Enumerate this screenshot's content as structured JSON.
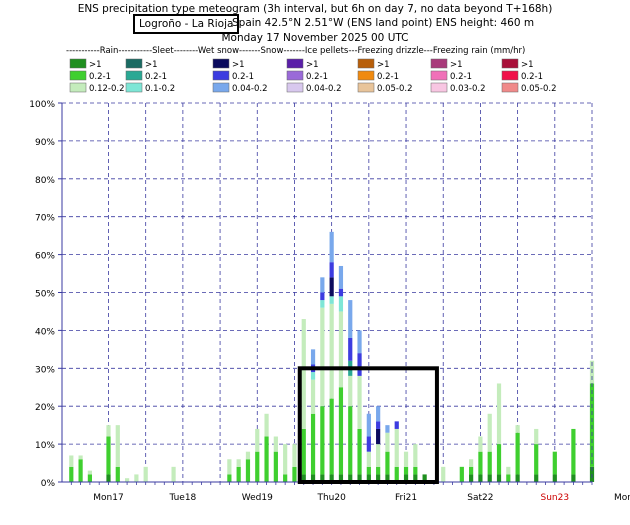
{
  "header": {
    "title": "ENS precipitation type meteogram (3h interval, but 6h on day 7, no data beyond T+168h)",
    "location": "Logroño - La Rioja",
    "location_detail": "Spain 42.5°N 2.51°W (ENS land point) ENS height: 460 m",
    "run_time": "Monday 17 November 2025 00 UTC"
  },
  "legend": {
    "heading": "-----------Rain-----------Sleet--------Wet snow-------Snow-------Ice pellets---Freezing drizzle---Freezing rain (mm/hr)",
    "groups": [
      {
        "name": "Rain",
        "items": [
          {
            "label": ">1",
            "color": "#1f8f1f"
          },
          {
            "label": "0.2-1",
            "color": "#3fcf2f"
          },
          {
            "label": "0.12-0.2",
            "color": "#c4ecbc"
          }
        ]
      },
      {
        "name": "Sleet",
        "items": [
          {
            "label": ">1",
            "color": "#1a6b63"
          },
          {
            "label": "0.2-1",
            "color": "#2aa894"
          },
          {
            "label": "0.1-0.2",
            "color": "#7ee6d6"
          }
        ]
      },
      {
        "name": "Wet snow",
        "items": [
          {
            "label": ">1",
            "color": "#0b0b5e"
          },
          {
            "label": "0.2-1",
            "color": "#3c3ce0"
          },
          {
            "label": "0.04-0.2",
            "color": "#79a8ec"
          }
        ]
      },
      {
        "name": "Snow",
        "items": [
          {
            "label": ">1",
            "color": "#5a1fa8"
          },
          {
            "label": "0.2-1",
            "color": "#9a6ad8"
          },
          {
            "label": "0.04-0.2",
            "color": "#d8c8ee"
          }
        ]
      },
      {
        "name": "Ice pellets",
        "items": [
          {
            "label": ">1",
            "color": "#b85f0a"
          },
          {
            "label": "0.2-1",
            "color": "#f08a10"
          },
          {
            "label": "0.05-0.2",
            "color": "#e8c49a"
          }
        ]
      },
      {
        "name": "Freezing drizzle",
        "items": [
          {
            "label": ">1",
            "color": "#a83a7a"
          },
          {
            "label": "0.2-1",
            "color": "#f070b8"
          },
          {
            "label": "0.03-0.2",
            "color": "#f8c6e2"
          }
        ]
      },
      {
        "name": "Freezing rain",
        "items": [
          {
            "label": ">1",
            "color": "#a8103a"
          },
          {
            "label": "0.2-1",
            "color": "#f0104a"
          },
          {
            "label": "0.05-0.2",
            "color": "#f08a8a"
          }
        ]
      }
    ]
  },
  "chart_data": {
    "type": "bar",
    "stacked": true,
    "x_unit": "hours from Monday 17 November 2025 00 UTC",
    "x": [
      0,
      3,
      6,
      9,
      12,
      15,
      18,
      21,
      24,
      27,
      30,
      33,
      36,
      39,
      42,
      45,
      48,
      51,
      54,
      57,
      60,
      63,
      66,
      69,
      72,
      75,
      78,
      81,
      84,
      87,
      90,
      93,
      96,
      99,
      102,
      105,
      108,
      111,
      114,
      117,
      120,
      123,
      126,
      129,
      132,
      135,
      138,
      141,
      144,
      150,
      156,
      162,
      168
    ],
    "xlim": [
      -3,
      168
    ],
    "ylim": [
      0,
      100
    ],
    "ytick_labels": [
      "0%",
      "10%",
      "20%",
      "30%",
      "40%",
      "50%",
      "60%",
      "70%",
      "80%",
      "90%",
      "100%"
    ],
    "xtick_labels": [
      {
        "label": "Mon17",
        "color": "#000000"
      },
      {
        "label": "Tue18",
        "color": "#000000"
      },
      {
        "label": "Wed19",
        "color": "#000000"
      },
      {
        "label": "Thu20",
        "color": "#000000"
      },
      {
        "label": "Fri21",
        "color": "#000000"
      },
      {
        "label": "Sat22",
        "color": "#000000"
      },
      {
        "label": "Sun23",
        "color": "#cc0000"
      },
      {
        "label": "Mon24",
        "color": "#000000"
      }
    ],
    "series": [
      {
        "name": "Rain >1",
        "color": "#1f8f1f",
        "values": [
          0,
          0,
          0,
          0,
          2,
          0,
          0,
          0,
          0,
          0,
          0,
          0,
          0,
          0,
          0,
          0,
          0,
          0,
          0,
          0,
          0,
          0,
          0,
          0,
          0,
          2,
          2,
          2,
          2,
          2,
          2,
          2,
          2,
          2,
          2,
          0,
          2,
          2,
          2,
          0,
          0,
          0,
          0,
          2,
          2,
          2,
          2,
          0,
          2,
          2,
          2,
          2,
          4
        ]
      },
      {
        "name": "Rain 0.2-1",
        "color": "#3fcf2f",
        "values": [
          4,
          6,
          2,
          0,
          10,
          4,
          0,
          0,
          0,
          0,
          0,
          0,
          0,
          0,
          0,
          0,
          0,
          2,
          4,
          6,
          8,
          12,
          8,
          2,
          4,
          12,
          16,
          18,
          20,
          23,
          18,
          12,
          2,
          2,
          6,
          4,
          2,
          2,
          0,
          0,
          0,
          0,
          4,
          2,
          6,
          6,
          8,
          2,
          11,
          8,
          6,
          12,
          22
        ]
      },
      {
        "name": "Rain 0.12-0.2",
        "color": "#c4ecbc",
        "values": [
          3,
          1,
          1,
          0,
          3,
          11,
          1,
          2,
          4,
          0,
          0,
          4,
          0,
          0,
          0,
          0,
          0,
          4,
          2,
          2,
          6,
          6,
          4,
          8,
          6,
          29,
          9,
          26,
          25,
          20,
          8,
          14,
          4,
          6,
          5,
          10,
          4,
          6,
          0,
          0,
          4,
          0,
          0,
          2,
          4,
          10,
          16,
          2,
          2,
          4,
          0,
          0,
          6
        ]
      },
      {
        "name": "Sleet 0.2-1",
        "color": "#2aa894",
        "values": [
          0,
          0,
          0,
          0,
          0,
          0,
          0,
          0,
          0,
          0,
          0,
          0,
          0,
          0,
          0,
          0,
          0,
          0,
          0,
          0,
          0,
          0,
          0,
          0,
          0,
          0,
          0,
          0,
          0,
          0,
          4,
          0,
          0,
          0,
          0,
          0,
          0,
          0,
          0,
          0,
          0,
          0,
          0,
          0,
          0,
          0,
          0,
          0,
          0,
          0,
          0,
          0,
          0
        ]
      },
      {
        "name": "Sleet 0.1-0.2",
        "color": "#7ee6d6",
        "values": [
          0,
          0,
          0,
          0,
          0,
          0,
          0,
          0,
          0,
          0,
          0,
          0,
          0,
          0,
          0,
          0,
          0,
          0,
          0,
          0,
          0,
          0,
          0,
          0,
          0,
          0,
          2,
          2,
          2,
          4,
          0,
          0,
          0,
          0,
          0,
          0,
          0,
          0,
          0,
          0,
          0,
          0,
          0,
          0,
          0,
          0,
          0,
          0,
          0,
          0,
          0,
          0,
          0
        ]
      },
      {
        "name": "Wet snow >1",
        "color": "#0b0b5e",
        "values": [
          0,
          0,
          0,
          0,
          0,
          0,
          0,
          0,
          0,
          0,
          0,
          0,
          0,
          0,
          0,
          0,
          0,
          0,
          0,
          0,
          0,
          0,
          0,
          0,
          0,
          0,
          0,
          0,
          5,
          0,
          0,
          0,
          0,
          4,
          0,
          0,
          0,
          0,
          0,
          0,
          0,
          0,
          0,
          0,
          0,
          0,
          0,
          0,
          0,
          0,
          0,
          0,
          0
        ]
      },
      {
        "name": "Wet snow 0.2-1",
        "color": "#3c3ce0",
        "values": [
          0,
          0,
          0,
          0,
          0,
          0,
          0,
          0,
          0,
          0,
          0,
          0,
          0,
          0,
          0,
          0,
          0,
          0,
          0,
          0,
          0,
          0,
          0,
          0,
          0,
          0,
          2,
          2,
          4,
          2,
          6,
          6,
          4,
          2,
          0,
          2,
          0,
          0,
          0,
          0,
          0,
          0,
          0,
          0,
          0,
          0,
          0,
          0,
          0,
          0,
          0,
          0,
          0
        ]
      },
      {
        "name": "Wet snow 0.04-0.2",
        "color": "#79a8ec",
        "values": [
          0,
          0,
          0,
          0,
          0,
          0,
          0,
          0,
          0,
          0,
          0,
          0,
          0,
          0,
          0,
          0,
          0,
          0,
          0,
          0,
          0,
          0,
          0,
          0,
          0,
          0,
          4,
          4,
          8,
          6,
          10,
          6,
          6,
          4,
          2,
          0,
          0,
          0,
          0,
          0,
          0,
          0,
          0,
          0,
          0,
          0,
          0,
          0,
          0,
          0,
          0,
          0,
          0
        ]
      }
    ]
  }
}
